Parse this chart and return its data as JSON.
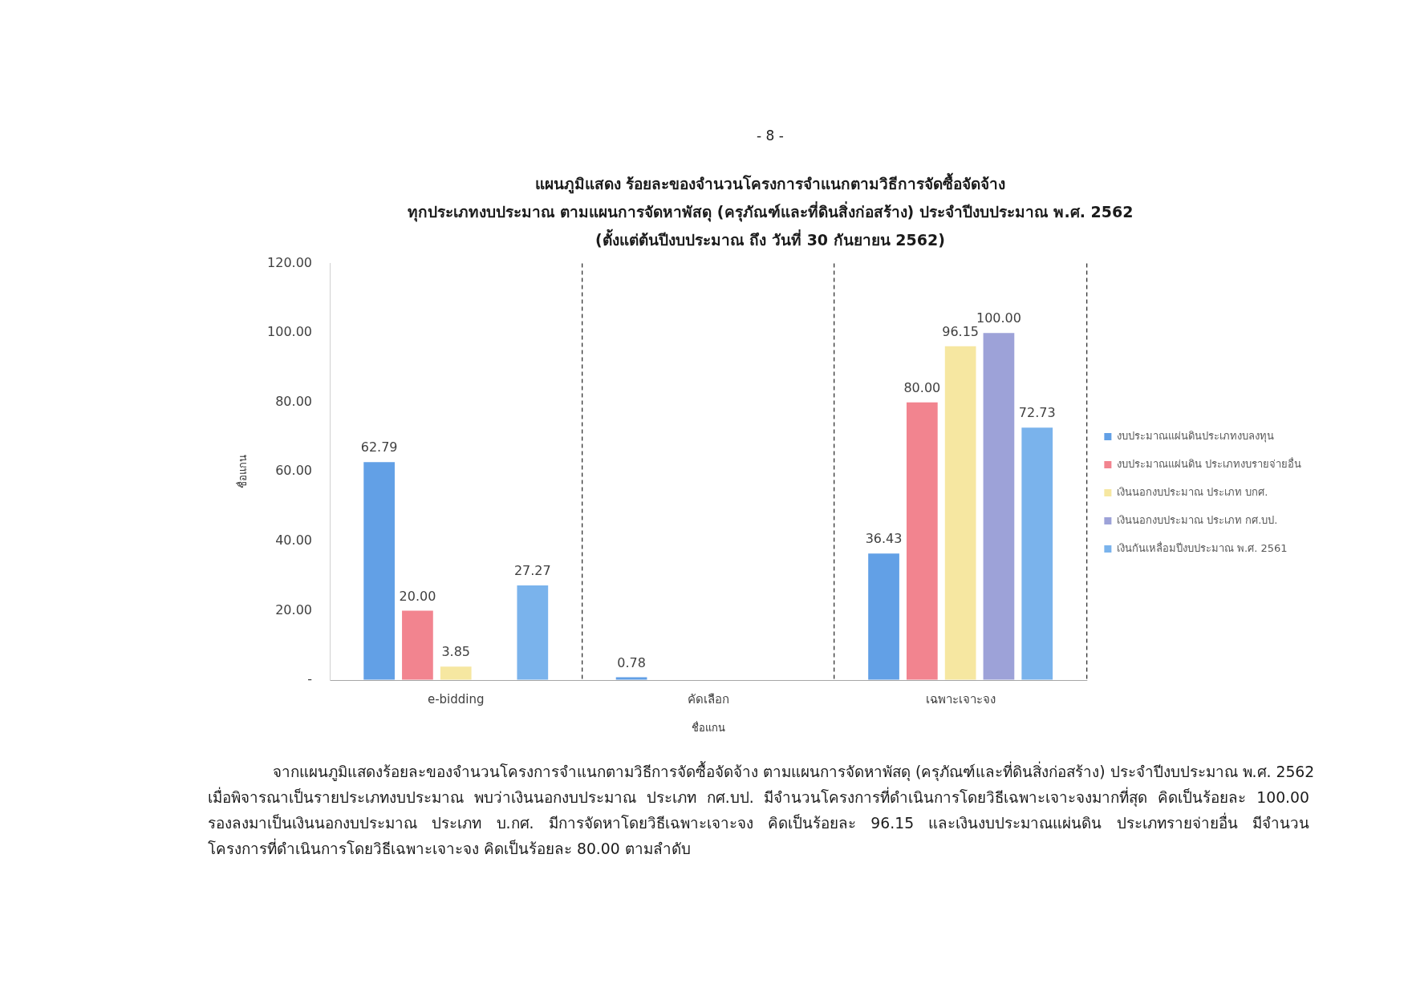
{
  "chart_data": {
    "type": "bar",
    "title": "แผนภูมิแสดง ร้อยละของจำนวนโครงการจำแนกตามวิธีการจัดซื้อจัดจ้าง\nทุกประเภทงบประมาณ ตามแผนการจัดหาพัสดุ (ครุภัณฑ์และที่ดินสิ่งก่อสร้าง) ประจำปีงบประมาณ พ.ศ. 2562\n(ตั้งแต่ต้นปีงบประมาณ ถึง วันที่ 30 กันยายน 2562)",
    "xlabel": "ชื่อแกน",
    "ylabel": "ชื่อแกน",
    "categories": [
      "e-bidding",
      "คัดเลือก",
      "เฉพาะเจาะจง"
    ],
    "series": [
      {
        "name": "งบประมาณแผ่นดินประเภทงบลงทุน",
        "color": "#62a0e6",
        "values": [
          62.79,
          0.78,
          36.43
        ],
        "value_labels": [
          "62.79",
          "0.78",
          "36.43"
        ]
      },
      {
        "name": "งบประมาณแผ่นดิน ประเภทงบรายจ่ายอื่น",
        "color": "#f2848f",
        "values": [
          20.0,
          null,
          80.0
        ],
        "value_labels": [
          "20.00",
          null,
          "80.00"
        ]
      },
      {
        "name": "เงินนอกงบประมาณ ประเภท บกศ.",
        "color": "#f6e7a1",
        "values": [
          3.85,
          null,
          96.15
        ],
        "value_labels": [
          "3.85",
          null,
          "96.15"
        ]
      },
      {
        "name": "เงินนอกงบประมาณ ประเภท กศ.บป.",
        "color": "#9da2d8",
        "values": [
          null,
          null,
          100.0
        ],
        "value_labels": [
          null,
          null,
          "100.00"
        ]
      },
      {
        "name": "เงินกันเหลื่อมปีงบประมาณ พ.ศ. 2561",
        "color": "#7ab3ec",
        "values": [
          27.27,
          null,
          72.73
        ],
        "value_labels": [
          "27.27",
          null,
          "72.73"
        ]
      }
    ],
    "ylim": [
      0,
      120
    ],
    "yticks": [
      {
        "value": 0,
        "label": "-"
      },
      {
        "value": 20,
        "label": "20.00"
      },
      {
        "value": 40,
        "label": "40.00"
      },
      {
        "value": 60,
        "label": "60.00"
      },
      {
        "value": 80,
        "label": "80.00"
      },
      {
        "value": 100,
        "label": "100.00"
      },
      {
        "value": 120,
        "label": "120.00"
      }
    ],
    "grid": "x",
    "legend": "right",
    "annotations": [
      "- 8 -",
      "จากแผนภูมิแสดงร้อยละของจำนวนโครงการจำแนกตามวิธีการจัดซื้อจัดจ้าง ตามแผนการจัดหาพัสดุ (ครุภัณฑ์และที่ดินสิ่งก่อสร้าง) ประจำปีงบประมาณ พ.ศ. 2562\nเมื่อพิจารณาเป็นรายประเภทงบประมาณ พบว่าเงินนอกงบประมาณ ประเภท กศ.บป. มีจำนวนโครงการที่ดำเนินการโดยวิธีเฉพาะเจาะจงมากที่สุด คิดเป็นร้อยละ 100.00\nรองลงมาเป็นเงินนอกงบประมาณ ประเภท บ.กศ. มีการจัดหาโดยวิธีเฉพาะเจาะจง คิดเป็นร้อยละ 96.15 และเงินงบประมาณแผ่นดิน ประเภทรายจ่ายอื่น มีจำนวน\nโครงการที่ดำเนินการโดยวิธีเฉพาะเจาะจง คิดเป็นร้อยละ 80.00 ตามลำดับ"
    ]
  }
}
